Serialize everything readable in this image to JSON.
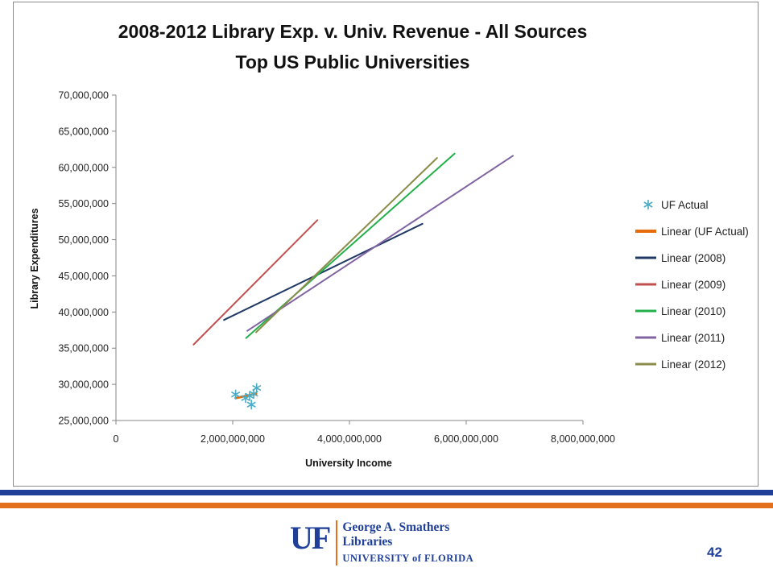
{
  "chart_data": {
    "type": "scatter",
    "title": [
      "2008-2012 Library Exp. v. Univ. Revenue - All Sources",
      "Top US Public Universities"
    ],
    "xlabel": "University Income",
    "ylabel": "Library Expenditures",
    "xlim": [
      0,
      8000000000
    ],
    "ylim": [
      25000000,
      70000000
    ],
    "x_ticks": [
      0,
      2000000000,
      4000000000,
      6000000000,
      8000000000
    ],
    "x_tick_labels": [
      "0",
      "2,000,000,000",
      "4,000,000,000",
      "6,000,000,000",
      "8,000,000,000"
    ],
    "y_ticks": [
      25000000,
      30000000,
      35000000,
      40000000,
      45000000,
      50000000,
      55000000,
      60000000,
      65000000,
      70000000
    ],
    "y_tick_labels": [
      "25,000,000",
      "30,000,000",
      "35,000,000",
      "40,000,000",
      "45,000,000",
      "50,000,000",
      "55,000,000",
      "60,000,000",
      "65,000,000",
      "70,000,000"
    ],
    "grid": false,
    "legend_position": "right",
    "scatter": {
      "name": "UF Actual",
      "color": "#4bacc6",
      "marker": "asterisk",
      "points": [
        {
          "x": 2050000000,
          "y": 28600000
        },
        {
          "x": 2220000000,
          "y": 28100000
        },
        {
          "x": 2290000000,
          "y": 28400000
        },
        {
          "x": 2320000000,
          "y": 27200000
        },
        {
          "x": 2360000000,
          "y": 28700000
        },
        {
          "x": 2410000000,
          "y": 29500000
        }
      ]
    },
    "series": [
      {
        "name": "Linear (UF Actual)",
        "color": "#e46c0a",
        "width": 3,
        "x": [
          2050000000,
          2400000000
        ],
        "y": [
          28100000,
          28700000
        ]
      },
      {
        "name": "Linear (2008)",
        "color": "#1f3864",
        "width": 2,
        "x": [
          1850000000,
          5250000000
        ],
        "y": [
          38900000,
          52200000
        ]
      },
      {
        "name": "Linear (2009)",
        "color": "#c0504d",
        "width": 2,
        "x": [
          1330000000,
          3450000000
        ],
        "y": [
          35500000,
          52700000
        ]
      },
      {
        "name": "Linear (2010)",
        "color": "#22b04a",
        "width": 2,
        "x": [
          2230000000,
          5800000000
        ],
        "y": [
          36400000,
          61900000
        ]
      },
      {
        "name": "Linear (2011)",
        "color": "#8064a2",
        "width": 2,
        "x": [
          2250000000,
          6800000000
        ],
        "y": [
          37400000,
          61600000
        ]
      },
      {
        "name": "Linear (2012)",
        "color": "#8c8c4a",
        "width": 2,
        "x": [
          2400000000,
          5500000000
        ],
        "y": [
          37200000,
          61300000
        ]
      }
    ]
  },
  "footer": {
    "logo_mark": "UF",
    "logo_line1": "George A. Smathers",
    "logo_line2": "Libraries",
    "logo_line3": "UNIVERSITY of FLORIDA",
    "page_number": "42",
    "brand_blue": "#1f3f99",
    "brand_orange": "#e2701c"
  }
}
